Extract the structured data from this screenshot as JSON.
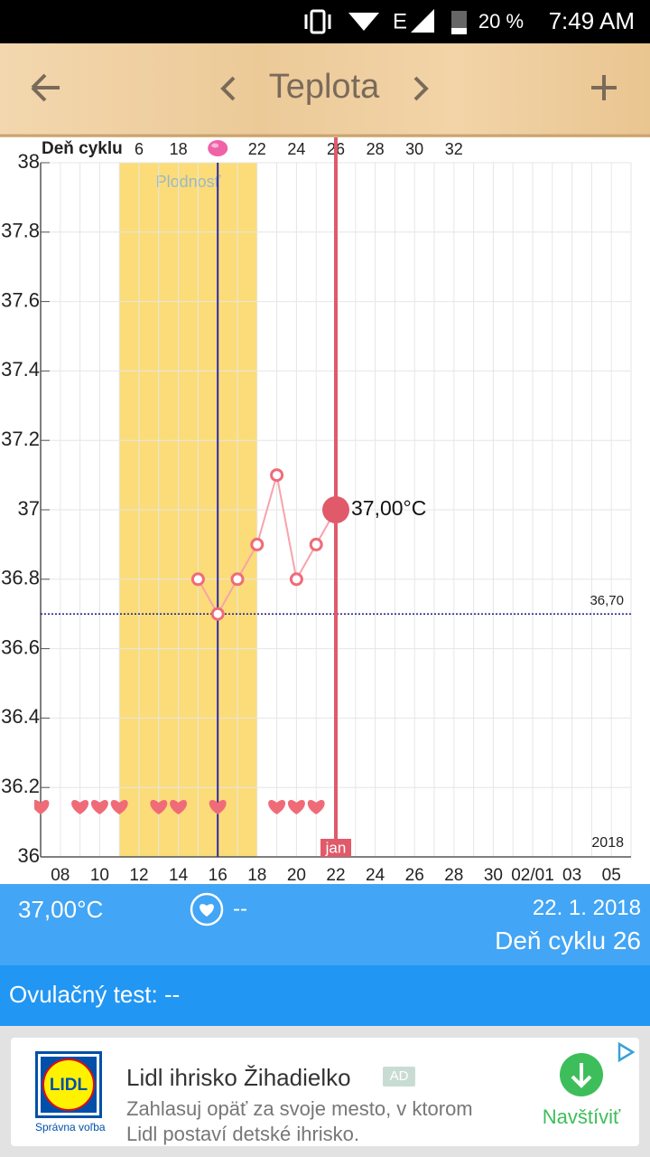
{
  "status_bar": {
    "network": "E",
    "battery": "20 %",
    "time": "7:49 AM"
  },
  "header": {
    "title": "Teplota"
  },
  "chart_data": {
    "type": "line",
    "cycle_axis_label": "Deň cyklu",
    "cycle_days": [
      null,
      null,
      null,
      null,
      null,
      6,
      null,
      18,
      null,
      null,
      null,
      22,
      null,
      24,
      null,
      26,
      null,
      28,
      null,
      30,
      null,
      32,
      null,
      null,
      null,
      null,
      null,
      null,
      null,
      null,
      null
    ],
    "categories": [
      null,
      "08",
      null,
      "10",
      null,
      "12",
      null,
      "14",
      null,
      "16",
      null,
      "18",
      null,
      "20",
      null,
      "22",
      null,
      "24",
      null,
      "26",
      null,
      "28",
      null,
      "30",
      null,
      "02/01",
      null,
      "03",
      null,
      "05",
      null
    ],
    "values": [
      null,
      null,
      null,
      null,
      null,
      null,
      null,
      null,
      36.8,
      36.7,
      36.8,
      36.9,
      37.1,
      36.8,
      36.9,
      37.0,
      null,
      null,
      null,
      null,
      null,
      null,
      null,
      null,
      null,
      null,
      null,
      null,
      null,
      null,
      null
    ],
    "value_labels": [
      null,
      null,
      null,
      null,
      null,
      null,
      null,
      null,
      null,
      null,
      null,
      null,
      null,
      null,
      null,
      "37,00°C",
      null,
      null,
      null,
      null,
      null,
      null,
      null,
      null,
      null,
      null,
      null,
      null,
      null,
      null,
      null
    ],
    "color": "#f06b78",
    "ylim": [
      36,
      38
    ],
    "yticks": [
      36,
      36.2,
      36.4,
      36.6,
      36.8,
      37,
      37.2,
      37.4,
      37.6,
      37.8,
      38
    ],
    "grid": true,
    "coverline": {
      "value": 36.7,
      "label": "36,70"
    },
    "fertile_window": {
      "label": "Plodnosť",
      "range": [
        4,
        11
      ]
    },
    "ovulation_index": 9,
    "today_index": 15,
    "today_month": "jan",
    "year": "2018",
    "intercourse": [
      0,
      2,
      3,
      4,
      6,
      7,
      9,
      12,
      13,
      14
    ]
  },
  "summary": {
    "temperature": "37,00°C",
    "intercourse": "--",
    "date": "22. 1. 2018",
    "cycle_day": "Deň cyklu 26"
  },
  "ovulation_test": "Ovulačný test: --",
  "ad": {
    "title": "Lidl ihrisko Žihadielko",
    "badge": "AD",
    "text_lines": [
      "Zahlasuj opäť za svoje mesto, v ktorom",
      "Lidl postaví detské ihrisko."
    ],
    "logo": "LIDL",
    "logo_caption": "Správna voľba",
    "action": "Navštíviť"
  }
}
